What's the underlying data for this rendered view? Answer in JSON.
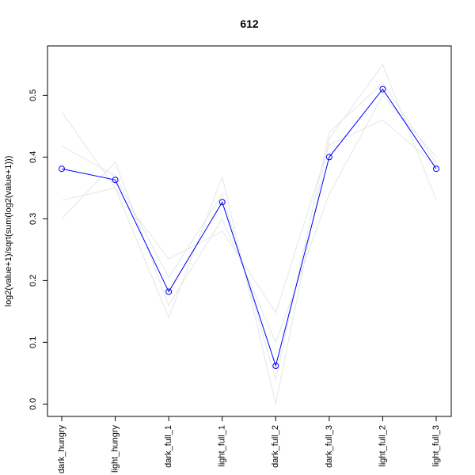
{
  "chart_data": {
    "type": "line",
    "title": "612",
    "xlabel": "",
    "ylabel": "log2(value+1)/sqrt(sum(log2(value+1)))",
    "categories": [
      "dark_hungry",
      "light_hungry",
      "dark_full_1",
      "light_full_1",
      "dark_full_2",
      "dark_full_3",
      "light_full_2",
      "light_full_3"
    ],
    "ylim": [
      -0.02,
      0.58
    ],
    "yticks": [
      0.0,
      0.1,
      0.2,
      0.3,
      0.4,
      0.5
    ],
    "ytick_labels": [
      "0.0",
      "0.1",
      "0.2",
      "0.3",
      "0.4",
      "0.5"
    ],
    "grid": false,
    "main_series": {
      "values": [
        0.381,
        0.363,
        0.182,
        0.327,
        0.062,
        0.4,
        0.51,
        0.381
      ],
      "color": "#0000ff",
      "marker": "circle"
    },
    "background_series_color": "#e6e6e6",
    "background_series": [
      {
        "values": [
          0.473,
          0.35,
          0.14,
          0.368,
          0.0,
          0.43,
          0.55,
          0.33
        ]
      },
      {
        "values": [
          0.3,
          0.392,
          0.16,
          0.3,
          0.1,
          0.34,
          0.5,
          0.4
        ]
      },
      {
        "values": [
          0.33,
          0.35,
          0.235,
          0.28,
          0.148,
          0.42,
          0.46,
          0.385
        ]
      },
      {
        "values": [
          0.418,
          0.37,
          0.205,
          0.34,
          0.04,
          0.44,
          0.52,
          0.39
        ]
      }
    ]
  }
}
